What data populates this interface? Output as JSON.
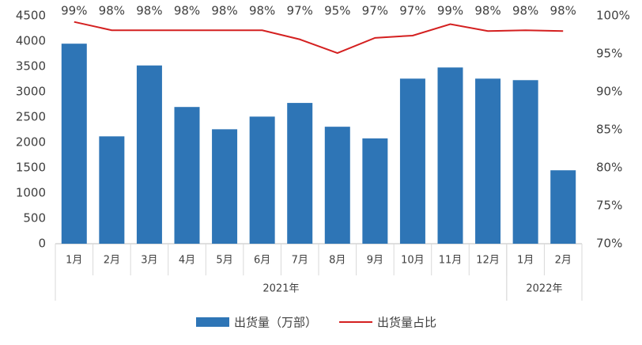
{
  "chart_data": {
    "type": "bar-line",
    "categories": [
      "1月",
      "2月",
      "3月",
      "4月",
      "5月",
      "6月",
      "7月",
      "8月",
      "9月",
      "10月",
      "11月",
      "12月",
      "1月",
      "2月"
    ],
    "groups": [
      {
        "label": "2021年",
        "count": 12
      },
      {
        "label": "2022年",
        "count": 2
      }
    ],
    "series": [
      {
        "name": "出货量（万部）",
        "type": "bar",
        "color": "#2e75b6",
        "axis": "y",
        "values": [
          3950,
          2120,
          3520,
          2700,
          2260,
          2510,
          2780,
          2310,
          2080,
          3260,
          3480,
          3260,
          3230,
          1450
        ]
      },
      {
        "name": "出货量占比",
        "type": "line",
        "color": "#d42020",
        "axis": "y2",
        "values": [
          99.2,
          98.1,
          98.1,
          98.1,
          98.1,
          98.1,
          96.9,
          95.1,
          97.1,
          97.4,
          98.9,
          98.0,
          98.1,
          98.0
        ],
        "value_labels": [
          "99%",
          "98%",
          "98%",
          "98%",
          "98%",
          "98%",
          "97%",
          "95%",
          "97%",
          "97%",
          "99%",
          "98%",
          "98%",
          "98%"
        ]
      }
    ],
    "ylim": [
      0,
      4500
    ],
    "yticks": [
      0,
      500,
      1000,
      1500,
      2000,
      2500,
      3000,
      3500,
      4000,
      4500
    ],
    "y2lim": [
      70,
      100
    ],
    "y2ticks": [
      {
        "value": 70,
        "label": "70%"
      },
      {
        "value": 75,
        "label": "75%"
      },
      {
        "value": 80,
        "label": "80%"
      },
      {
        "value": 85,
        "label": "85%"
      },
      {
        "value": 90,
        "label": "90%"
      },
      {
        "value": 95,
        "label": "95%"
      },
      {
        "value": 100,
        "label": "100%"
      }
    ],
    "legend": "bottom",
    "grid": false
  }
}
